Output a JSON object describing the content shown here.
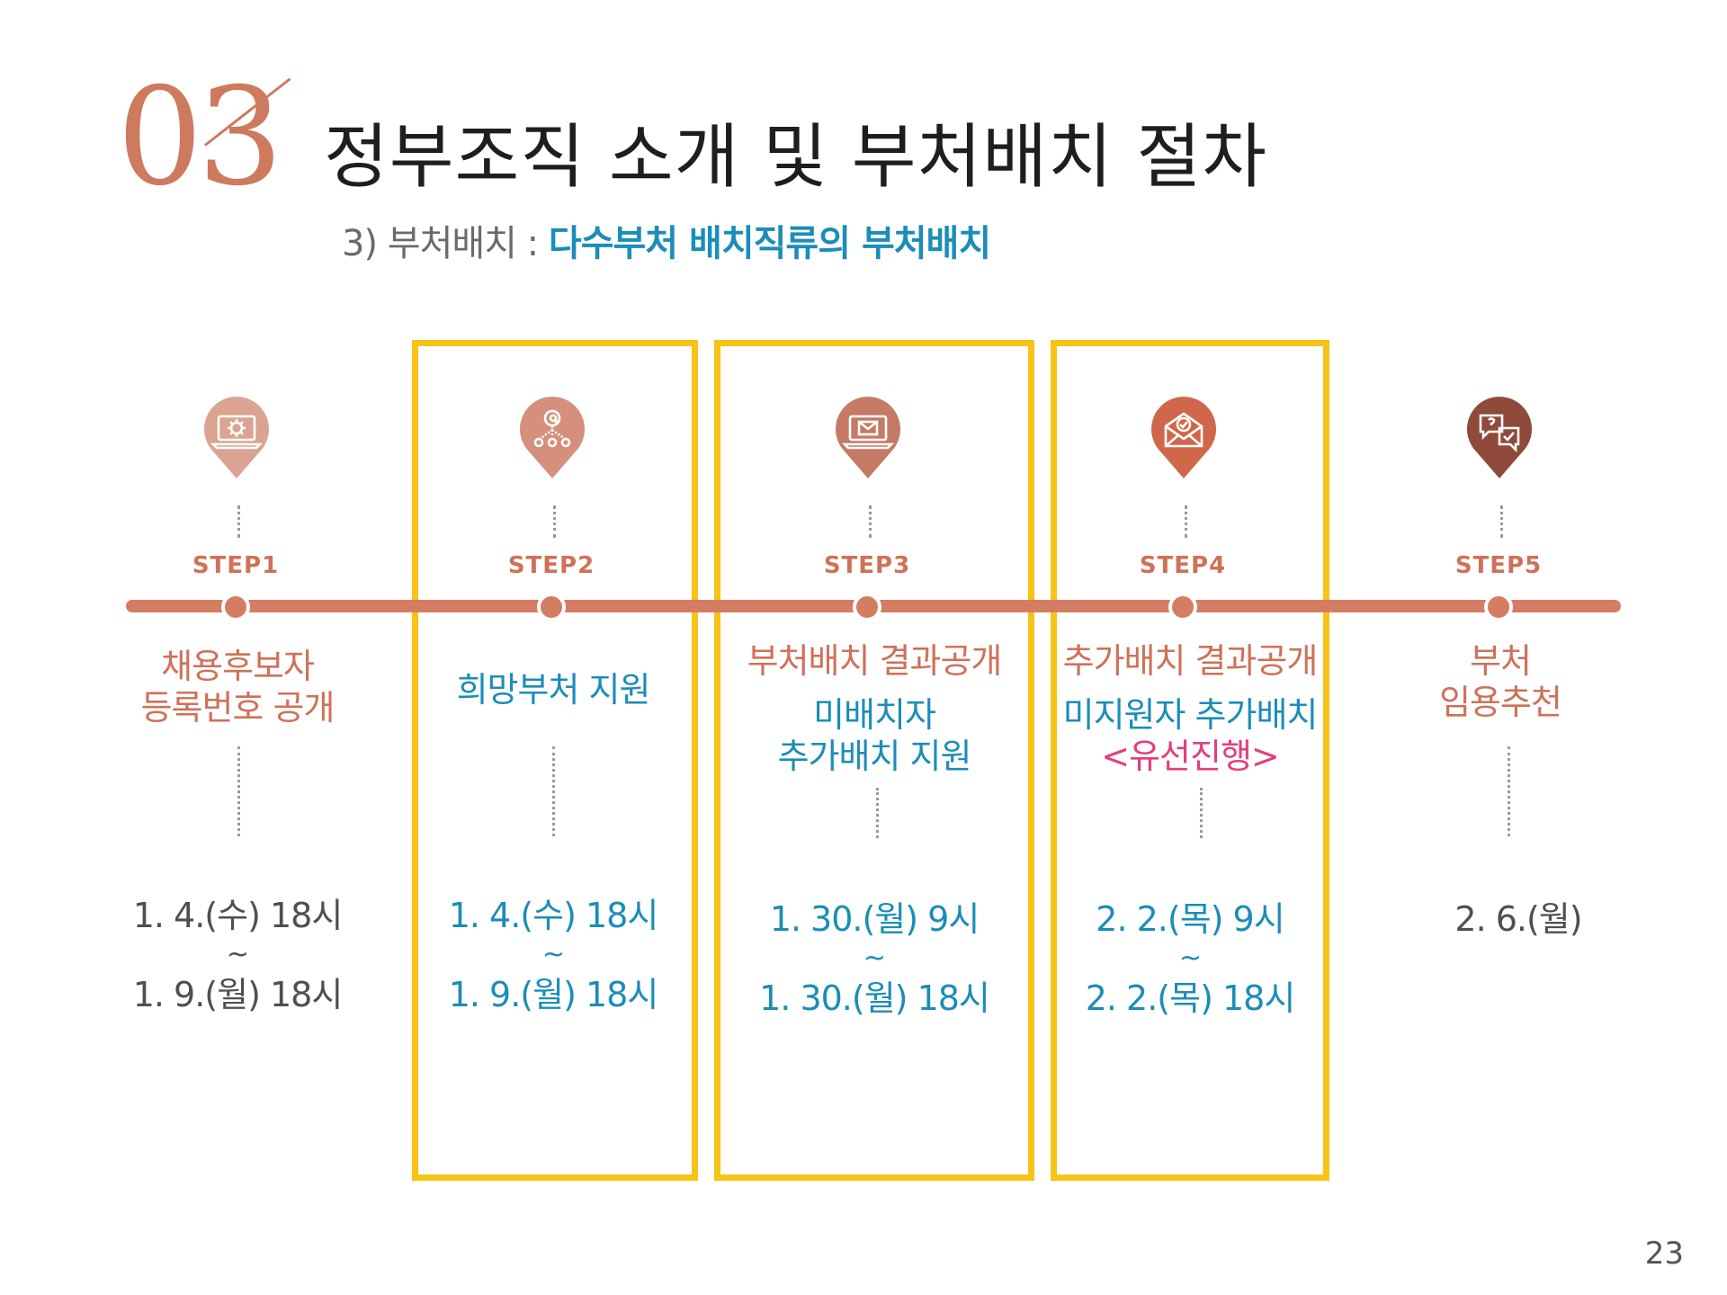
{
  "header": {
    "number": "03",
    "title": "정부조직 소개 및 부처배치 절차",
    "subtitle_prefix": "3) 부처배치 : ",
    "subtitle_highlight": "다수부처 배치직류의 부처배치"
  },
  "steps": [
    {
      "label": "STEP1",
      "icon": "laptop-gear-icon",
      "pin_color": "#dba392",
      "desc_lines": [
        "채용후보자",
        "등록번호 공개"
      ],
      "date_start": "1. 4.(수) 18시",
      "tilde": "~",
      "date_end": "1. 9.(월) 18시"
    },
    {
      "label": "STEP2",
      "icon": "network-at-icon",
      "pin_color": "#d4907c",
      "desc_lines": [
        "희망부처 지원"
      ],
      "date_start": "1. 4.(수) 18시",
      "tilde": "~",
      "date_end": "1. 9.(월) 18시"
    },
    {
      "label": "STEP3",
      "icon": "laptop-mail-icon",
      "pin_color": "#c57a66",
      "desc_title": "부처배치 결과공개",
      "desc_lines": [
        "미배치자",
        "추가배치 지원"
      ],
      "date_start": "1. 30.(월) 9시",
      "tilde": "~",
      "date_end": "1. 30.(월) 18시"
    },
    {
      "label": "STEP4",
      "icon": "envelope-check-icon",
      "pin_color": "#d0674b",
      "desc_title": "추가배치 결과공개",
      "desc_lines": [
        "미지원자 추가배치"
      ],
      "desc_highlight": "<유선진행>",
      "date_start": "2. 2.(목) 9시",
      "tilde": "~",
      "date_end": "2. 2.(목) 18시"
    },
    {
      "label": "STEP5",
      "icon": "chat-question-check-icon",
      "pin_color": "#8f4a3b",
      "desc_lines": [
        "부처",
        "임용추천"
      ],
      "date_single": "2. 6.(월)"
    }
  ],
  "page_number": "23",
  "colors": {
    "accent_coral": "#d47d62",
    "accent_teal": "#1b8db8",
    "highlight_frame": "#f7c317",
    "highlight_pink": "#e33f7a"
  }
}
